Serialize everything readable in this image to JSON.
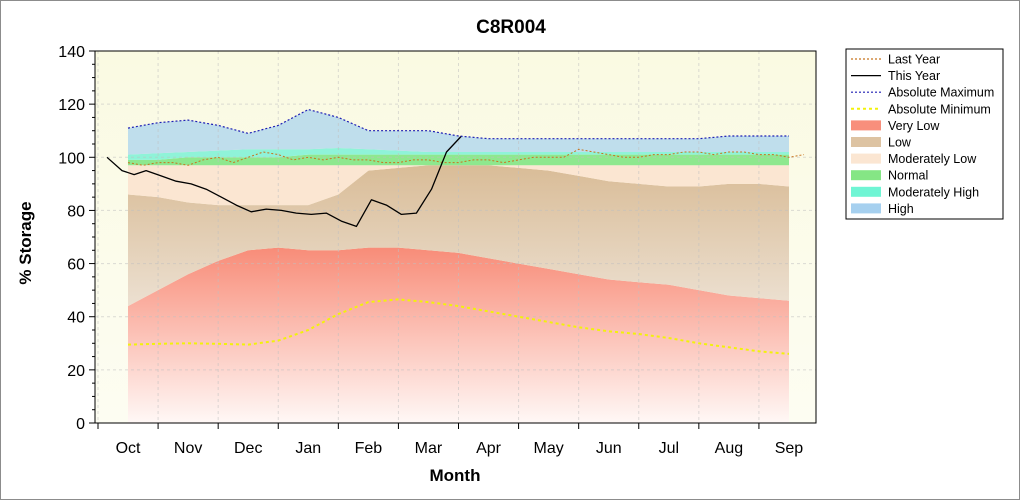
{
  "chart_data": {
    "type": "area",
    "title": "C8R004",
    "xlabel": "Month",
    "ylabel": "% Storage",
    "ylim": [
      0,
      140
    ],
    "yticks": [
      0,
      20,
      40,
      60,
      80,
      100,
      120,
      140
    ],
    "categories": [
      "Oct",
      "Nov",
      "Dec",
      "Jan",
      "Feb",
      "Mar",
      "Apr",
      "May",
      "Jun",
      "Jul",
      "Aug",
      "Sep"
    ],
    "legend_position": "right",
    "bands": {
      "x": [
        0,
        0.5,
        1,
        1.5,
        2,
        2.5,
        3,
        3.5,
        4,
        4.5,
        5,
        5.5,
        6,
        6.5,
        7,
        7.5,
        8,
        8.5,
        9,
        9.5,
        10,
        10.5,
        11
      ],
      "very_low_top": [
        44,
        50,
        56,
        61,
        65,
        66,
        65,
        65,
        66,
        66,
        65,
        64,
        62,
        60,
        58,
        56,
        54,
        53,
        52,
        50,
        48,
        47,
        46
      ],
      "low_top": [
        86,
        85,
        83,
        82,
        82,
        82,
        82,
        86,
        95,
        96,
        97,
        97,
        97,
        96,
        95,
        93,
        91,
        90,
        89,
        89,
        90,
        90,
        89
      ],
      "mod_low_top": [
        97,
        97,
        97,
        97,
        97,
        97,
        97,
        97,
        97,
        97,
        97,
        97,
        97,
        97,
        97,
        97,
        97,
        97,
        97,
        97,
        97,
        97,
        97
      ],
      "normal_top": [
        99,
        99,
        100,
        100,
        100,
        100,
        101,
        101,
        101,
        101,
        101,
        101,
        101,
        101,
        101,
        101,
        101,
        101,
        101,
        101,
        101,
        101,
        101
      ],
      "mod_high_top": [
        101,
        101.5,
        102,
        102.5,
        103,
        103,
        103,
        103.5,
        103,
        102.5,
        102,
        102,
        102,
        102,
        102,
        102,
        102,
        102,
        102,
        102,
        102,
        102,
        102
      ],
      "high_top": [
        111,
        113,
        114,
        112,
        109,
        112,
        118,
        115,
        110,
        110,
        110,
        108,
        107,
        107,
        107,
        107,
        107,
        107,
        107,
        107,
        108,
        108,
        108
      ]
    },
    "series": [
      {
        "name": "Last Year",
        "color": "#c8741e",
        "x": [
          0,
          0.25,
          0.5,
          0.75,
          1,
          1.25,
          1.5,
          1.75,
          2,
          2.25,
          2.5,
          2.75,
          3,
          3.25,
          3.5,
          3.75,
          4,
          4.25,
          4.5,
          4.75,
          5,
          5.25,
          5.5,
          5.75,
          6,
          6.25,
          6.5,
          6.75,
          7,
          7.25,
          7.5,
          7.75,
          8,
          8.25,
          8.5,
          8.75,
          9,
          9.25,
          9.5,
          9.75,
          10,
          10.25,
          10.5,
          10.75,
          11,
          11.25
        ],
        "values": [
          98,
          97,
          98,
          98,
          97,
          99,
          100,
          98,
          100,
          102,
          101,
          99,
          100,
          99,
          100,
          99,
          99,
          98,
          98,
          99,
          99,
          98,
          98,
          99,
          99,
          98,
          99,
          100,
          100,
          100,
          103,
          102,
          101,
          100,
          100,
          101,
          101,
          102,
          102,
          101,
          102,
          102,
          101,
          101,
          100,
          101
        ]
      },
      {
        "name": "This Year",
        "color": "#000000",
        "x": [
          -0.35,
          -0.1,
          0.1,
          0.3,
          0.55,
          0.8,
          1.05,
          1.3,
          1.55,
          1.8,
          2.05,
          2.3,
          2.55,
          2.8,
          3.05,
          3.3,
          3.55,
          3.8,
          4.05,
          4.3,
          4.55,
          4.8,
          5.05,
          5.3,
          5.55
        ],
        "values": [
          100,
          95,
          93.5,
          95,
          93,
          91,
          90,
          88,
          85,
          82,
          79.5,
          80.5,
          80,
          79,
          78.5,
          79,
          76,
          74,
          84,
          82,
          78.5,
          79,
          88,
          102,
          108
        ]
      },
      {
        "name": "Absolute Maximum",
        "color": "#1e1eb4",
        "x": [
          0,
          0.5,
          1,
          1.5,
          2,
          2.5,
          3,
          3.5,
          4,
          4.5,
          5,
          5.5,
          6,
          6.5,
          7,
          7.5,
          8,
          8.5,
          9,
          9.5,
          10,
          10.5,
          11
        ],
        "values": [
          111,
          113,
          114,
          112,
          109,
          112,
          118,
          115,
          110,
          110,
          110,
          108,
          107,
          107,
          107,
          107,
          107,
          107,
          107,
          107,
          108,
          108,
          108
        ]
      },
      {
        "name": "Absolute Minimum",
        "color": "#f2f20a",
        "x": [
          0,
          0.5,
          1,
          1.5,
          2,
          2.5,
          3,
          3.5,
          4,
          4.5,
          5,
          5.5,
          6,
          6.5,
          7,
          7.5,
          8,
          8.5,
          9,
          9.5,
          10,
          10.5,
          11
        ],
        "values": [
          29.5,
          29.8,
          30,
          29.8,
          29.5,
          31,
          35,
          41,
          45.5,
          46.5,
          45.5,
          44,
          42,
          40,
          38,
          36,
          34.5,
          33.5,
          32,
          30,
          28.5,
          27,
          26
        ]
      }
    ],
    "legend": [
      {
        "label": "Last Year",
        "kind": "line",
        "color": "#c8741e",
        "dash": "2,2"
      },
      {
        "label": "This Year",
        "kind": "line",
        "color": "#000000",
        "dash": ""
      },
      {
        "label": "Absolute Maximum",
        "kind": "line",
        "color": "#1e1eb4",
        "dash": "2,2"
      },
      {
        "label": "Absolute Minimum",
        "kind": "line",
        "color": "#f2f20a",
        "dash": "3,3"
      },
      {
        "label": "Very Low",
        "kind": "swatch",
        "color": "#f88f7c"
      },
      {
        "label": "Low",
        "kind": "swatch",
        "color": "#ddc3a2"
      },
      {
        "label": "Moderately Low",
        "kind": "swatch",
        "color": "#fbe6d2"
      },
      {
        "label": "Normal",
        "kind": "swatch",
        "color": "#85e685"
      },
      {
        "label": "Moderately High",
        "kind": "swatch",
        "color": "#6ff5d4"
      },
      {
        "label": "High",
        "kind": "swatch",
        "color": "#a6d0ef"
      }
    ]
  }
}
